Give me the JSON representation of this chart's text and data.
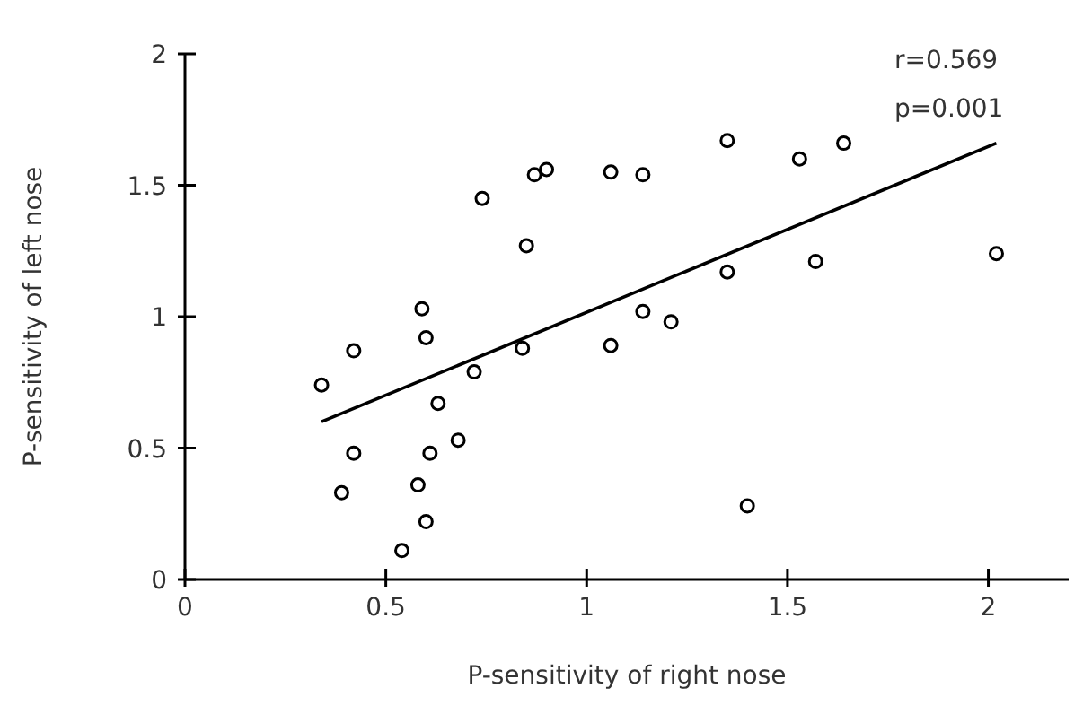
{
  "chart_data": {
    "type": "scatter",
    "xlabel": "P-sensitivity of right nose",
    "ylabel": "P-sensitivity of left nose",
    "annotations": [
      "r=0.569",
      "p=0.001"
    ],
    "xlim": [
      0,
      2.2
    ],
    "xticks": [
      0,
      0.5,
      1,
      1.5,
      2
    ],
    "ylim": [
      0,
      2
    ],
    "yticks": [
      0,
      0.5,
      1,
      1.5,
      2
    ],
    "grid": false,
    "legend": false,
    "marker": "circle",
    "series": [
      {
        "color": "#000000",
        "x": [
          0.34,
          0.42,
          0.42,
          0.39,
          0.54,
          0.58,
          0.6,
          0.59,
          0.6,
          0.61,
          0.63,
          0.68,
          0.72,
          0.74,
          0.84,
          0.85,
          0.87,
          0.9,
          1.06,
          1.06,
          1.14,
          1.14,
          1.21,
          1.35,
          1.35,
          1.4,
          1.53,
          1.57,
          1.64,
          2.02
        ],
        "values": [
          0.74,
          0.87,
          0.48,
          0.33,
          0.11,
          0.36,
          0.22,
          1.03,
          0.92,
          0.48,
          0.67,
          0.53,
          0.79,
          1.45,
          0.88,
          1.27,
          1.54,
          1.56,
          1.55,
          0.89,
          1.54,
          1.02,
          0.98,
          1.67,
          1.17,
          0.28,
          1.6,
          1.21,
          1.66,
          1.24
        ]
      },
      {
        "type": "line",
        "color": "#000000",
        "marker": "none",
        "line_style": "solid",
        "x": [
          0.34,
          2.02
        ],
        "values": [
          0.6,
          1.66
        ]
      }
    ]
  }
}
